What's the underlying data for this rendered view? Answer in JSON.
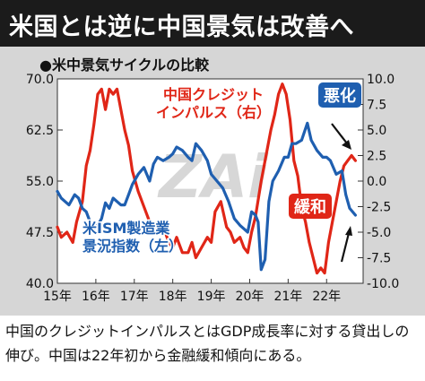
{
  "headline": "米国とは逆に中国景気は改善へ",
  "caption": "中国のクレジットインパルスとはGDP成長率に対する貸出しの伸び。中国は22年初から金融緩和傾向にある。",
  "colors": {
    "red": "#e02617",
    "blue": "#1f5fb0",
    "bg": "#d6d6d6",
    "plot_bg": "#ffffff"
  },
  "chart_data": {
    "type": "line",
    "title": "●米中景気サイクルの比較",
    "watermark": "ZAi",
    "x_ticks": [
      "15年",
      "16年",
      "17年",
      "18年",
      "19年",
      "20年",
      "21年",
      "22年"
    ],
    "left_axis": {
      "ticks": [
        "70.0",
        "62.5",
        "55.0",
        "47.5",
        "40.0"
      ],
      "ylim": [
        40,
        70
      ]
    },
    "right_axis": {
      "ticks": [
        "10.0",
        "7.5",
        "5.0",
        "2.5",
        "0.0",
        "-2.5",
        "-5.0",
        "-7.5",
        "-10.0"
      ],
      "ylim": [
        -10,
        10
      ]
    },
    "annotations": {
      "worsen": "悪化",
      "ease": "緩和"
    },
    "series": [
      {
        "name": "中国クレジット\nインパルス（右）",
        "axis": "right",
        "color": "#e02617",
        "x": [
          2015.0,
          2015.1,
          2015.25,
          2015.4,
          2015.5,
          2015.65,
          2015.75,
          2015.85,
          2015.95,
          2016.05,
          2016.15,
          2016.25,
          2016.35,
          2016.45,
          2016.55,
          2016.65,
          2016.75,
          2016.85,
          2016.95,
          2017.1,
          2017.25,
          2017.4,
          2017.5,
          2017.6,
          2017.75,
          2017.9,
          2018.0,
          2018.1,
          2018.25,
          2018.4,
          2018.5,
          2018.6,
          2018.75,
          2018.9,
          2019.0,
          2019.1,
          2019.25,
          2019.4,
          2019.5,
          2019.6,
          2019.75,
          2019.85,
          2019.95,
          2020.05,
          2020.15,
          2020.3,
          2020.45,
          2020.55,
          2020.65,
          2020.75,
          2020.85,
          2020.95,
          2021.05,
          2021.15,
          2021.25,
          2021.35,
          2021.45,
          2021.55,
          2021.65,
          2021.75,
          2021.85,
          2021.95,
          2022.05,
          2022.15,
          2022.25,
          2022.35,
          2022.45,
          2022.55,
          2022.65,
          2022.75
        ],
        "y": [
          -4.5,
          -5.5,
          -5.0,
          -6.0,
          -4.0,
          -2.0,
          1.5,
          3.0,
          5.5,
          8.5,
          9.0,
          7.0,
          9.0,
          8.5,
          9.0,
          7.0,
          5.0,
          3.5,
          1.0,
          -1.0,
          -2.5,
          -4.0,
          -4.5,
          -5.0,
          -4.5,
          -6.0,
          -6.5,
          -5.5,
          -7.0,
          -7.0,
          -6.0,
          -7.5,
          -6.5,
          -5.5,
          -6.0,
          -3.0,
          -2.0,
          -4.5,
          -5.0,
          -6.0,
          -5.5,
          -6.5,
          -7.0,
          -5.0,
          -3.5,
          0.0,
          3.0,
          5.0,
          6.5,
          8.5,
          9.5,
          8.5,
          6.0,
          2.0,
          0.5,
          -2.5,
          -4.0,
          -6.0,
          -7.5,
          -9.0,
          -8.5,
          -9.0,
          -6.0,
          -4.0,
          -2.0,
          0.0,
          1.5,
          2.0,
          2.5,
          2.0
        ]
      },
      {
        "name": "米ISM製造業\n景況指数（左）",
        "axis": "left",
        "color": "#1f5fb0",
        "x": [
          2015.0,
          2015.1,
          2015.2,
          2015.3,
          2015.45,
          2015.55,
          2015.65,
          2015.75,
          2015.85,
          2015.95,
          2016.05,
          2016.15,
          2016.25,
          2016.35,
          2016.45,
          2016.55,
          2016.65,
          2016.75,
          2016.85,
          2016.95,
          2017.1,
          2017.25,
          2017.4,
          2017.5,
          2017.6,
          2017.75,
          2017.9,
          2018.0,
          2018.1,
          2018.25,
          2018.4,
          2018.5,
          2018.6,
          2018.75,
          2018.9,
          2019.0,
          2019.15,
          2019.3,
          2019.45,
          2019.6,
          2019.75,
          2019.85,
          2019.95,
          2020.05,
          2020.15,
          2020.22,
          2020.3,
          2020.4,
          2020.5,
          2020.6,
          2020.75,
          2020.9,
          2021.0,
          2021.1,
          2021.2,
          2021.35,
          2021.5,
          2021.6,
          2021.75,
          2021.9,
          2022.0,
          2022.1,
          2022.25,
          2022.4,
          2022.5,
          2022.6,
          2022.75
        ],
        "y": [
          53.5,
          52.5,
          52.0,
          51.5,
          53.0,
          52.5,
          51.0,
          50.5,
          49.0,
          48.0,
          48.5,
          49.5,
          51.8,
          51.0,
          52.5,
          52.0,
          51.5,
          51.5,
          53.0,
          54.5,
          56.0,
          57.0,
          55.0,
          57.5,
          58.5,
          58.0,
          58.5,
          59.0,
          60.0,
          59.5,
          58.5,
          58.0,
          60.5,
          59.5,
          58.0,
          56.0,
          55.0,
          54.0,
          52.0,
          49.5,
          48.5,
          48.0,
          47.5,
          50.5,
          50.0,
          49.0,
          42.0,
          43.5,
          52.0,
          55.0,
          56.5,
          58.5,
          58.5,
          60.5,
          60.5,
          61.0,
          63.5,
          61.0,
          59.5,
          58.5,
          58.5,
          58.0,
          56.0,
          56.5,
          53.0,
          51.0,
          50.0
        ]
      }
    ]
  }
}
